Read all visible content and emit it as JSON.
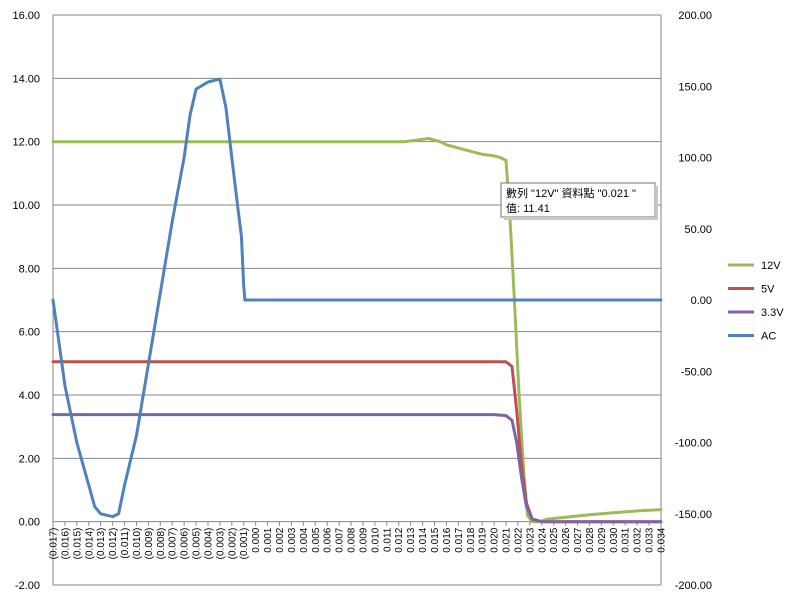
{
  "chart_data": {
    "type": "line",
    "x_categories": [
      "(0.017)",
      "(0.016)",
      "(0.015)",
      "(0.014)",
      "(0.013)",
      "(0.012)",
      "(0.011)",
      "(0.010)",
      "(0.009)",
      "(0.008)",
      "(0.007)",
      "(0.006)",
      "(0.005)",
      "(0.004)",
      "(0.003)",
      "(0.002)",
      "(0.001)",
      "0.000",
      "0.001",
      "0.002",
      "0.003",
      "0.004",
      "0.005",
      "0.006",
      "0.007",
      "0.008",
      "0.009",
      "0.010",
      "0.011",
      "0.012",
      "0.013",
      "0.014",
      "0.015",
      "0.016",
      "0.017",
      "0.018",
      "0.019",
      "0.020",
      "0.021",
      "0.022",
      "0.023",
      "0.024",
      "0.025",
      "0.026",
      "0.027",
      "0.028",
      "0.029",
      "0.030",
      "0.031",
      "0.032",
      "0.033",
      "0.034"
    ],
    "x_range": [
      -0.017,
      0.034
    ],
    "y_left": {
      "min": -2,
      "max": 16,
      "step": 2,
      "tick_labels": [
        "16.00",
        "14.00",
        "12.00",
        "10.00",
        "8.00",
        "6.00",
        "4.00",
        "2.00",
        "0.00",
        "-2.00"
      ]
    },
    "y_right": {
      "min": -200,
      "max": 200,
      "step": 50,
      "tick_labels": [
        "200.00",
        "150.00",
        "100.00",
        "50.00",
        "0.00",
        "-50.00",
        "-100.00",
        "-150.00",
        "-200.00"
      ]
    },
    "grid": "horizontal",
    "legend_position": "right",
    "series": [
      {
        "name": "12V",
        "axis": "left",
        "color": "#9BBB59",
        "points": [
          [
            -0.017,
            12.0
          ],
          [
            -0.01,
            12.0
          ],
          [
            0.0,
            12.0
          ],
          [
            0.01,
            12.0
          ],
          [
            0.0125,
            12.0
          ],
          [
            0.0135,
            12.05
          ],
          [
            0.0145,
            12.1
          ],
          [
            0.0155,
            12.0
          ],
          [
            0.016,
            11.9
          ],
          [
            0.017,
            11.8
          ],
          [
            0.018,
            11.7
          ],
          [
            0.019,
            11.6
          ],
          [
            0.02,
            11.55
          ],
          [
            0.0205,
            11.5
          ],
          [
            0.021,
            11.41
          ],
          [
            0.0213,
            9.8
          ],
          [
            0.0217,
            7.0
          ],
          [
            0.0221,
            4.0
          ],
          [
            0.0225,
            1.5
          ],
          [
            0.0228,
            0.2
          ],
          [
            0.0232,
            0.0
          ],
          [
            0.0238,
            0.0
          ],
          [
            0.0245,
            0.08
          ],
          [
            0.026,
            0.14
          ],
          [
            0.028,
            0.22
          ],
          [
            0.03,
            0.28
          ],
          [
            0.032,
            0.34
          ],
          [
            0.034,
            0.38
          ]
        ]
      },
      {
        "name": "5V",
        "axis": "left",
        "color": "#C0504D",
        "points": [
          [
            -0.017,
            5.05
          ],
          [
            0.0,
            5.05
          ],
          [
            0.01,
            5.05
          ],
          [
            0.02,
            5.05
          ],
          [
            0.021,
            5.05
          ],
          [
            0.0215,
            4.9
          ],
          [
            0.0219,
            3.5
          ],
          [
            0.0223,
            1.8
          ],
          [
            0.0227,
            0.6
          ],
          [
            0.0232,
            0.08
          ],
          [
            0.024,
            0.0
          ],
          [
            0.034,
            0.0
          ]
        ]
      },
      {
        "name": "3.3V",
        "axis": "left",
        "color": "#8064A2",
        "points": [
          [
            -0.017,
            3.38
          ],
          [
            0.0,
            3.38
          ],
          [
            0.01,
            3.38
          ],
          [
            0.02,
            3.38
          ],
          [
            0.021,
            3.35
          ],
          [
            0.0215,
            3.2
          ],
          [
            0.0219,
            2.5
          ],
          [
            0.0223,
            1.4
          ],
          [
            0.0227,
            0.5
          ],
          [
            0.0232,
            0.08
          ],
          [
            0.024,
            0.0
          ],
          [
            0.034,
            0.0
          ]
        ]
      },
      {
        "name": "AC",
        "axis": "right",
        "color": "#4F81BD",
        "points": [
          [
            -0.017,
            0.0
          ],
          [
            -0.0165,
            -30
          ],
          [
            -0.016,
            -60
          ],
          [
            -0.015,
            -100
          ],
          [
            -0.014,
            -130
          ],
          [
            -0.0135,
            -145
          ],
          [
            -0.013,
            -150
          ],
          [
            -0.012,
            -152
          ],
          [
            -0.0115,
            -150
          ],
          [
            -0.011,
            -130
          ],
          [
            -0.01,
            -95
          ],
          [
            -0.009,
            -45
          ],
          [
            -0.008,
            5
          ],
          [
            -0.007,
            55
          ],
          [
            -0.006,
            100
          ],
          [
            -0.0055,
            130
          ],
          [
            -0.005,
            148
          ],
          [
            -0.004,
            153
          ],
          [
            -0.003,
            155
          ],
          [
            -0.0025,
            135
          ],
          [
            -0.002,
            100
          ],
          [
            -0.0015,
            65
          ],
          [
            -0.0012,
            45
          ],
          [
            -0.001,
            10
          ],
          [
            -0.0009,
            0
          ],
          [
            0.0,
            0
          ],
          [
            0.01,
            0
          ],
          [
            0.02,
            0
          ],
          [
            0.034,
            0
          ]
        ]
      }
    ],
    "annotations": [
      {
        "line1": "數列 \"12V\" 資料點 \"0.021 \"",
        "line2": "值: 11.41",
        "x": 0.021,
        "y": 11.41
      }
    ]
  }
}
